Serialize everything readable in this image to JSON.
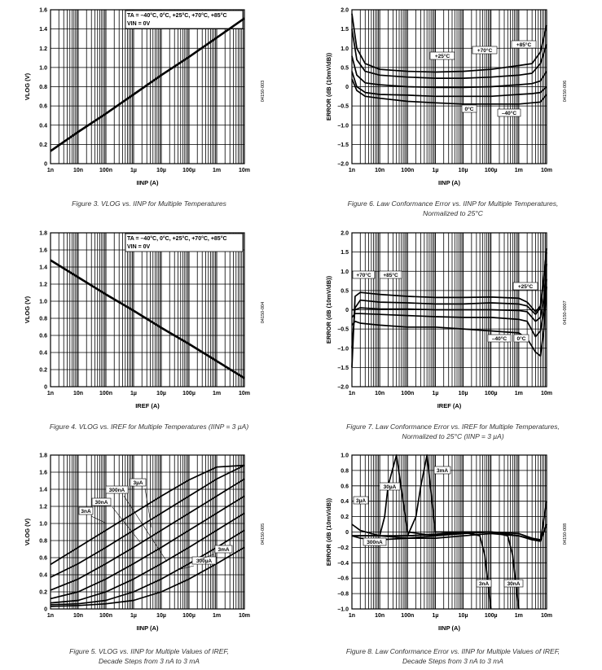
{
  "chart_data": [
    {
      "id": "fig3",
      "type": "line",
      "ylabel": "VLOG (V)",
      "xlabel": "IINP (A)",
      "xticks": [
        "1n",
        "10n",
        "100n",
        "1µ",
        "10µ",
        "100µ",
        "1m",
        "10m"
      ],
      "xlog": true,
      "xlim": [
        1e-09,
        0.01
      ],
      "ylim": [
        0,
        1.6
      ],
      "yticks": [
        0,
        0.2,
        0.4,
        0.6,
        0.8,
        1.0,
        1.2,
        1.4,
        1.6
      ],
      "ytick_labels": [
        "0",
        "0.2",
        "0.4",
        "0.6",
        "0.8",
        "1.0",
        "1.2",
        "1.4",
        "1.6"
      ],
      "legend": [
        "TA = –40°C, 0°C, +25°C, +70°C, +85°C",
        "VIN = 0V"
      ],
      "legend_position": "top-right",
      "series": [
        {
          "x": [
            1e-09,
            1e-08,
            1e-07,
            1e-06,
            1e-05,
            0.0001,
            0.001,
            0.01
          ],
          "values": [
            0.13,
            0.33,
            0.52,
            0.72,
            0.92,
            1.11,
            1.31,
            1.51
          ]
        }
      ],
      "annotations": [],
      "code": "04150-003",
      "caption": "Figure 3. VLOG vs. IINP for Multiple Temperatures"
    },
    {
      "id": "fig6",
      "type": "line",
      "ylabel": "ERROR (dB (10mV/dB))",
      "xlabel": "IINP (A)",
      "xticks": [
        "1n",
        "10n",
        "100n",
        "1µ",
        "10µ",
        "100µ",
        "1m",
        "10m"
      ],
      "xlog": true,
      "xlim": [
        1e-09,
        0.01
      ],
      "ylim": [
        -2.0,
        2.0
      ],
      "yticks": [
        -2.0,
        -1.5,
        -1.0,
        -0.5,
        0,
        0.5,
        1.0,
        1.5,
        2.0
      ],
      "ytick_labels": [
        "–2.0",
        "–1.5",
        "–1.0",
        "–0.5",
        "0",
        "0.5",
        "1.0",
        "1.5",
        "2.0"
      ],
      "series": [
        {
          "name": "+85°C",
          "x": [
            1e-09,
            1.5e-09,
            3e-09,
            1e-08,
            1e-07,
            1e-06,
            1e-05,
            0.0001,
            0.001,
            0.003,
            0.006,
            0.01
          ],
          "values": [
            1.9,
            1.0,
            0.6,
            0.45,
            0.4,
            0.38,
            0.4,
            0.45,
            0.55,
            0.6,
            0.9,
            1.6
          ]
        },
        {
          "name": "+70°C",
          "x": [
            1e-09,
            1.5e-09,
            3e-09,
            1e-08,
            1e-07,
            1e-06,
            1e-05,
            0.0001,
            0.001,
            0.003,
            0.006,
            0.01
          ],
          "values": [
            1.5,
            0.7,
            0.4,
            0.3,
            0.25,
            0.22,
            0.22,
            0.25,
            0.3,
            0.35,
            0.6,
            1.1
          ]
        },
        {
          "name": "+25°C",
          "x": [
            1e-09,
            1.5e-09,
            3e-09,
            1e-08,
            1e-07,
            1e-06,
            1e-05,
            0.0001,
            0.001,
            0.003,
            0.006,
            0.01
          ],
          "values": [
            0.8,
            0.3,
            0.1,
            0.05,
            0.0,
            -0.02,
            -0.02,
            0.0,
            0.05,
            0.08,
            0.15,
            0.4
          ]
        },
        {
          "name": "0°C",
          "x": [
            1e-09,
            1.5e-09,
            3e-09,
            1e-08,
            1e-07,
            1e-06,
            1e-05,
            0.0001,
            0.001,
            0.003,
            0.006,
            0.01
          ],
          "values": [
            0.4,
            0.0,
            -0.15,
            -0.2,
            -0.22,
            -0.25,
            -0.25,
            -0.25,
            -0.2,
            -0.18,
            -0.15,
            0.0
          ]
        },
        {
          "name": "–40°C",
          "x": [
            1e-09,
            1.5e-09,
            3e-09,
            1e-08,
            1e-07,
            1e-06,
            1e-05,
            0.0001,
            0.001,
            0.003,
            0.006,
            0.01
          ],
          "values": [
            0.2,
            -0.1,
            -0.25,
            -0.3,
            -0.38,
            -0.42,
            -0.45,
            -0.45,
            -0.45,
            -0.42,
            -0.4,
            -0.2
          ]
        }
      ],
      "annotations": [
        "+25°C",
        "+70°C",
        "+85°C",
        "0°C",
        "–40°C"
      ],
      "code": "04150-006",
      "caption_lines": [
        "Figure 6. Law Conformance Error vs. IINP for Multiple Temperatures,",
        "Normalized to 25°C"
      ]
    },
    {
      "id": "fig4",
      "type": "line",
      "ylabel": "VLOG (V)",
      "xlabel": "IREF (A)",
      "xticks": [
        "1n",
        "10n",
        "100n",
        "1µ",
        "10µ",
        "100µ",
        "1m",
        "10m"
      ],
      "xlog": true,
      "xlim": [
        1e-09,
        0.01
      ],
      "ylim": [
        0,
        1.8
      ],
      "yticks": [
        0,
        0.2,
        0.4,
        0.6,
        0.8,
        1.0,
        1.2,
        1.4,
        1.6,
        1.8
      ],
      "ytick_labels": [
        "0",
        "0.2",
        "0.4",
        "0.6",
        "0.8",
        "1.0",
        "1.2",
        "1.4",
        "1.6",
        "1.8"
      ],
      "legend": [
        "TA = –40°C, 0°C, +25°C, +70°C, +85°C",
        "VIN = 0V"
      ],
      "legend_position": "top-right",
      "series": [
        {
          "x": [
            1e-09,
            1e-08,
            1e-07,
            1e-06,
            1e-05,
            0.0001,
            0.001,
            0.01
          ],
          "values": [
            1.48,
            1.28,
            1.08,
            0.89,
            0.69,
            0.5,
            0.3,
            0.1
          ]
        }
      ],
      "annotations": [],
      "code": "04150-004",
      "caption": "Figure 4. VLOG vs. IREF for Multiple Temperatures (IINP = 3 µA)"
    },
    {
      "id": "fig7",
      "type": "line",
      "ylabel": "ERROR (dB (10mV/dB))",
      "xlabel": "IREF (A)",
      "xticks": [
        "1n",
        "10n",
        "100n",
        "1µ",
        "10µ",
        "100µ",
        "1m",
        "10m"
      ],
      "xlog": true,
      "xlim": [
        1e-09,
        0.01
      ],
      "ylim": [
        -2.0,
        2.0
      ],
      "yticks": [
        -2.0,
        -1.5,
        -1.0,
        -0.5,
        0,
        0.5,
        1.0,
        1.5,
        2.0
      ],
      "ytick_labels": [
        "–2.0",
        "–1.5",
        "–1.0",
        "–0.5",
        "0",
        "0.5",
        "1.0",
        "1.5",
        "2.0"
      ],
      "series": [
        {
          "name": "+70°C",
          "x": [
            1e-09,
            1.3e-09,
            2e-09,
            1e-08,
            1e-07,
            1e-06,
            1e-05,
            0.0001,
            0.001,
            0.002,
            0.004,
            0.006,
            0.008,
            0.01
          ],
          "values": [
            -1.5,
            0.35,
            0.45,
            0.4,
            0.35,
            0.32,
            0.32,
            0.33,
            0.3,
            0.2,
            -0.05,
            0.1,
            0.9,
            1.5
          ]
        },
        {
          "name": "+85°C",
          "x": [
            1e-09,
            1.3e-09,
            2e-09,
            1e-08,
            1e-07,
            1e-06,
            1e-05,
            0.0001,
            0.001,
            0.002,
            0.004,
            0.006,
            0.008,
            0.01
          ],
          "values": [
            -1.0,
            0.05,
            0.25,
            0.2,
            0.18,
            0.15,
            0.15,
            0.18,
            0.15,
            0.1,
            -0.12,
            0.05,
            0.8,
            1.6
          ]
        },
        {
          "name": "+25°C",
          "x": [
            1e-09,
            1.3e-09,
            2e-09,
            1e-08,
            1e-07,
            1e-06,
            1e-05,
            0.0001,
            0.001,
            0.002,
            0.004,
            0.006,
            0.008,
            0.01
          ],
          "values": [
            0.0,
            0.0,
            0.05,
            0.02,
            0.02,
            0.0,
            0.0,
            0.0,
            -0.02,
            -0.05,
            -0.3,
            -0.2,
            0.3,
            1.2
          ]
        },
        {
          "name": "0°C",
          "x": [
            1e-09,
            1.3e-09,
            2e-09,
            1e-08,
            1e-07,
            1e-06,
            1e-05,
            0.0001,
            0.001,
            0.002,
            0.004,
            0.006,
            0.008,
            0.01
          ],
          "values": [
            -0.2,
            -0.1,
            -0.1,
            -0.12,
            -0.15,
            -0.18,
            -0.2,
            -0.2,
            -0.25,
            -0.3,
            -0.7,
            -0.55,
            0.0,
            0.8
          ]
        },
        {
          "name": "–40°C",
          "x": [
            1e-09,
            1.3e-09,
            2e-09,
            1e-08,
            1e-07,
            1e-06,
            1e-05,
            0.0001,
            0.001,
            0.002,
            0.004,
            0.006,
            0.008,
            0.01
          ],
          "values": [
            -0.4,
            -0.3,
            -0.35,
            -0.4,
            -0.45,
            -0.45,
            -0.5,
            -0.55,
            -0.6,
            -0.75,
            -1.1,
            -1.2,
            -0.5,
            0.6
          ]
        }
      ],
      "annotations": [
        "+70°C",
        "+85°C",
        "+25°C",
        "–40°C",
        "0°C"
      ],
      "code": "04150-0007",
      "caption_lines": [
        "Figure 7. Law Conformance Error vs. IREF for Multiple Temperatures,",
        "Normalized to 25°C (IINP = 3 µA)"
      ]
    },
    {
      "id": "fig5",
      "type": "line",
      "ylabel": "VLOG (V)",
      "xlabel": "IINP (A)",
      "xticks": [
        "1n",
        "10n",
        "100n",
        "1µ",
        "10µ",
        "100µ",
        "1m",
        "10m"
      ],
      "xlog": true,
      "xlim": [
        1e-09,
        0.01
      ],
      "ylim": [
        0,
        1.8
      ],
      "yticks": [
        0,
        0.2,
        0.4,
        0.6,
        0.8,
        1.0,
        1.2,
        1.4,
        1.6,
        1.8
      ],
      "ytick_labels": [
        "0",
        "0.2",
        "0.4",
        "0.6",
        "0.8",
        "1.0",
        "1.2",
        "1.4",
        "1.6",
        "1.8"
      ],
      "series": [
        {
          "name": "3nA",
          "x": [
            1e-09,
            1e-08,
            1e-07,
            1e-06,
            1e-05,
            0.0001,
            0.001,
            0.01
          ],
          "values": [
            0.52,
            0.72,
            0.92,
            1.12,
            1.32,
            1.51,
            1.66,
            1.68
          ]
        },
        {
          "name": "30nA",
          "x": [
            1e-09,
            1e-08,
            1e-07,
            1e-06,
            1e-05,
            0.0001,
            0.001,
            0.01
          ],
          "values": [
            0.37,
            0.53,
            0.72,
            0.92,
            1.12,
            1.32,
            1.52,
            1.68
          ]
        },
        {
          "name": "300nA",
          "x": [
            1e-09,
            1e-08,
            1e-07,
            1e-06,
            1e-05,
            0.0001,
            0.001,
            0.01
          ],
          "values": [
            0.22,
            0.35,
            0.53,
            0.72,
            0.92,
            1.12,
            1.32,
            1.52
          ]
        },
        {
          "name": "3µA",
          "x": [
            1e-09,
            1e-08,
            1e-07,
            1e-06,
            1e-05,
            0.0001,
            0.001,
            0.01
          ],
          "values": [
            0.12,
            0.2,
            0.35,
            0.53,
            0.72,
            0.92,
            1.12,
            1.32
          ]
        },
        {
          "name": "30µA",
          "x": [
            1e-09,
            1e-08,
            1e-07,
            1e-06,
            1e-05,
            0.0001,
            0.001,
            0.01
          ],
          "values": [
            0.07,
            0.1,
            0.2,
            0.35,
            0.53,
            0.72,
            0.92,
            1.12
          ]
        },
        {
          "name": "300µA",
          "x": [
            1e-09,
            1e-08,
            1e-07,
            1e-06,
            1e-05,
            0.0001,
            0.001,
            0.01
          ],
          "values": [
            0.05,
            0.06,
            0.1,
            0.2,
            0.35,
            0.53,
            0.72,
            0.92
          ]
        },
        {
          "name": "3mA",
          "x": [
            1e-09,
            1e-08,
            1e-07,
            1e-06,
            1e-05,
            0.0001,
            0.001,
            0.01
          ],
          "values": [
            0.03,
            0.04,
            0.06,
            0.1,
            0.2,
            0.35,
            0.53,
            0.72
          ]
        }
      ],
      "annotations": [
        "3µA",
        "300nA",
        "30nA",
        "3nA",
        "3mA",
        "300µA"
      ],
      "code": "04150-005",
      "caption_lines": [
        "Figure 5. VLOG vs. IINP for Multiple Values of IREF,",
        "Decade Steps from 3 nA to 3 mA"
      ]
    },
    {
      "id": "fig8",
      "type": "line",
      "ylabel": "ERROR (dB (10mV/dB))",
      "xlabel": "IINP (A)",
      "xticks": [
        "1n",
        "10n",
        "100n",
        "1µ",
        "10µ",
        "100µ",
        "1m",
        "10m"
      ],
      "xlog": true,
      "xlim": [
        1e-09,
        0.01
      ],
      "ylim": [
        -1.0,
        1.0
      ],
      "yticks": [
        -1.0,
        -0.8,
        -0.6,
        -0.4,
        -0.2,
        0,
        0.2,
        0.4,
        0.6,
        0.8,
        1.0
      ],
      "ytick_labels": [
        "–1.0",
        "–0.8",
        "–0.6",
        "–0.4",
        "–0.2",
        "0",
        "0.2",
        "0.4",
        "0.6",
        "0.8",
        "1.0"
      ],
      "series": [
        {
          "name": "3µA",
          "x": [
            1e-09,
            2e-09,
            1e-08,
            1e-07,
            1e-06,
            1e-05,
            0.0001,
            0.001,
            0.003,
            0.006,
            0.01
          ],
          "values": [
            0.1,
            0.02,
            -0.05,
            -0.08,
            -0.08,
            -0.05,
            -0.02,
            -0.05,
            -0.1,
            -0.12,
            0.4
          ]
        },
        {
          "name": "300nA",
          "x": [
            1e-09,
            2e-09,
            1e-08,
            1e-07,
            1e-06,
            1e-05,
            0.0001,
            0.001,
            0.003,
            0.006,
            0.01
          ],
          "values": [
            -0.05,
            -0.08,
            -0.1,
            -0.08,
            -0.05,
            -0.02,
            0.0,
            -0.02,
            -0.08,
            -0.1,
            0.1
          ]
        },
        {
          "name": "30µA",
          "x": [
            1e-09,
            1e-08,
            1.5e-08,
            2e-08,
            4e-08,
            1e-07,
            1e-06,
            1e-05,
            0.0001,
            0.001,
            0.006,
            0.01
          ],
          "values": [
            -0.05,
            -0.05,
            0.2,
            0.6,
            1.0,
            0.0,
            -0.05,
            0.0,
            0.0,
            -0.05,
            -0.12,
            0.1
          ]
        },
        {
          "name": "3mA",
          "x": [
            1e-09,
            1e-07,
            2e-07,
            3e-07,
            5e-07,
            1e-06,
            1e-05,
            0.0001,
            0.001,
            0.006,
            0.01
          ],
          "values": [
            -0.05,
            -0.05,
            0.2,
            0.6,
            1.0,
            0.0,
            0.0,
            0.0,
            -0.05,
            -0.12,
            0.1
          ]
        },
        {
          "name": "3nA",
          "x": [
            1e-09,
            1e-08,
            1e-07,
            1e-06,
            1e-05,
            4e-05,
            6e-05,
            8e-05,
            0.0001
          ],
          "values": [
            -0.05,
            -0.05,
            -0.05,
            -0.03,
            0.0,
            -0.05,
            -0.3,
            -0.7,
            -1.0
          ]
        },
        {
          "name": "30nA",
          "x": [
            1e-09,
            1e-08,
            1e-07,
            1e-06,
            1e-05,
            0.0001,
            0.0004,
            0.0006,
            0.0008,
            0.001
          ],
          "values": [
            -0.05,
            -0.05,
            -0.05,
            -0.03,
            0.0,
            0.0,
            -0.05,
            -0.3,
            -0.7,
            -1.0
          ]
        }
      ],
      "annotations": [
        "3mA",
        "30µA",
        "3µA",
        "300nA",
        "3nA",
        "30nA"
      ],
      "code": "04150-008",
      "caption_lines": [
        "Figure 8. Law Conformance Error vs. IINP for Multiple Values of IREF,",
        "Decade Steps from 3 nA to 3 mA"
      ]
    }
  ]
}
